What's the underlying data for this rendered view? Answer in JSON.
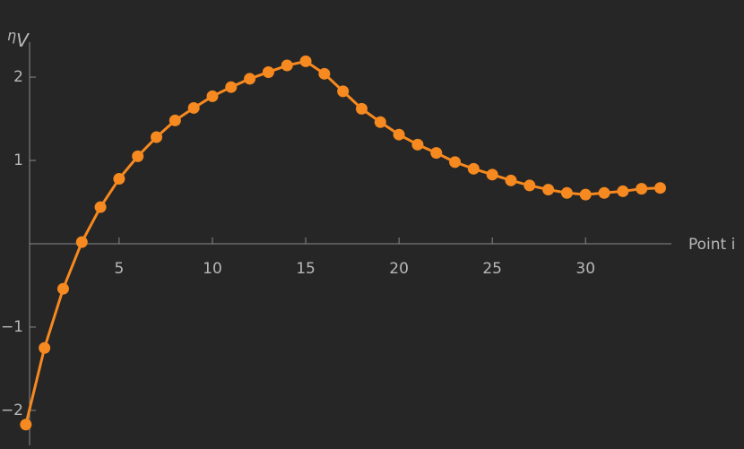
{
  "chart_data": {
    "type": "line",
    "x_label": "Point i",
    "y_label": "η",
    "y_label_subscript": "V",
    "x": [
      0,
      1,
      2,
      3,
      4,
      5,
      6,
      7,
      8,
      9,
      10,
      11,
      12,
      13,
      14,
      15,
      16,
      17,
      18,
      19,
      20,
      21,
      22,
      23,
      24,
      25,
      26,
      27,
      28,
      29,
      30,
      31,
      32,
      33,
      34
    ],
    "values": [
      -2.17,
      -1.25,
      -0.54,
      0.02,
      0.44,
      0.78,
      1.05,
      1.28,
      1.48,
      1.63,
      1.77,
      1.88,
      1.98,
      2.06,
      2.14,
      2.19,
      2.04,
      1.83,
      1.62,
      1.46,
      1.31,
      1.19,
      1.09,
      0.98,
      0.9,
      0.83,
      0.76,
      0.7,
      0.65,
      0.61,
      0.59,
      0.61,
      0.63,
      0.66,
      0.67
    ],
    "color": "#f6891f",
    "xlim": [
      0.2,
      34.6
    ],
    "ylim": [
      -2.42,
      2.42
    ],
    "xticks": [
      5,
      10,
      15,
      20,
      25,
      30
    ],
    "yticks": [
      {
        "value": -2,
        "label": "−2"
      },
      {
        "value": -1,
        "label": "−1"
      },
      1,
      2
    ]
  }
}
